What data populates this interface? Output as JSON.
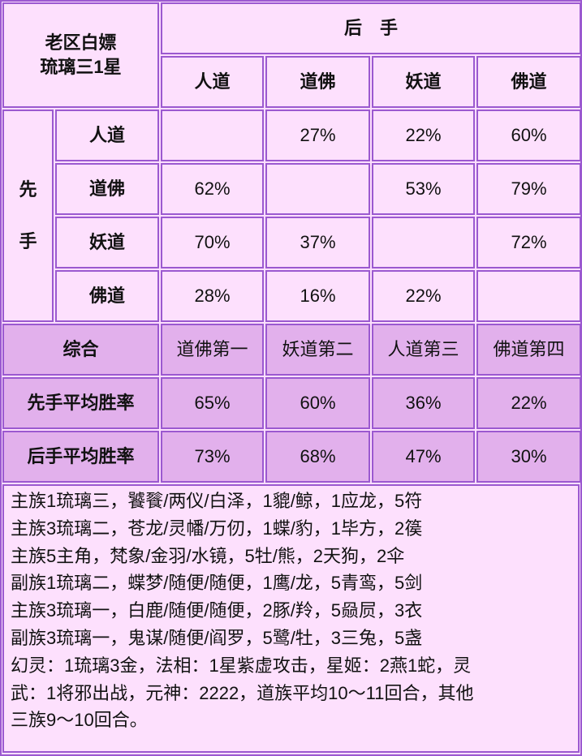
{
  "corner_title": [
    "老区白嫖",
    "琉璃三1星"
  ],
  "second_hand_label": "后　手",
  "first_hand_label": [
    "先",
    "手"
  ],
  "columns": [
    "人道",
    "道佛",
    "妖道",
    "佛道"
  ],
  "rows": [
    {
      "label": "人道",
      "values": [
        "",
        "27%",
        "22%",
        "60%"
      ]
    },
    {
      "label": "道佛",
      "values": [
        "62%",
        "",
        "53%",
        "79%"
      ]
    },
    {
      "label": "妖道",
      "values": [
        "70%",
        "37%",
        "",
        "72%"
      ]
    },
    {
      "label": "佛道",
      "values": [
        "28%",
        "16%",
        "22%",
        ""
      ]
    }
  ],
  "summary": {
    "label": "综合",
    "values": [
      "道佛第一",
      "妖道第二",
      "人道第三",
      "佛道第四"
    ]
  },
  "first_avg": {
    "label": "先手平均胜率",
    "values": [
      "65%",
      "60%",
      "36%",
      "22%"
    ]
  },
  "second_avg": {
    "label": "后手平均胜率",
    "values": [
      "73%",
      "68%",
      "47%",
      "30%"
    ]
  },
  "notes": [
    "主族1琉璃三，饕餮/两仪/白泽，1貔/鲸，1应龙，5符",
    "主族3琉璃二，苍龙/灵幡/万仞，1蝶/豹，1毕方，2篌",
    "主族5主角，梵象/金羽/水镜，5牡/熊，2天狗，2伞",
    "副族1琉璃二，蝶梦/随便/随便，1鹰/龙，5青鸾，5剑",
    "主族3琉璃一，白鹿/随便/随便，2豚/羚，5赑屃，3衣",
    "副族3琉璃一，鬼谋/随便/阎罗，5鹭/牡，3三兔，5盏",
    "幻灵：1琉璃3金，法相：1星紫虚攻击，星姬：2燕1蛇，灵",
    "武：1将邪出战，元神：2222，道族平均10～11回合，其他",
    "三族9～10回合。"
  ],
  "colors": {
    "border": "#9b59d0",
    "cell": "#fde0fd",
    "summary_cell": "#e2b0ec"
  }
}
